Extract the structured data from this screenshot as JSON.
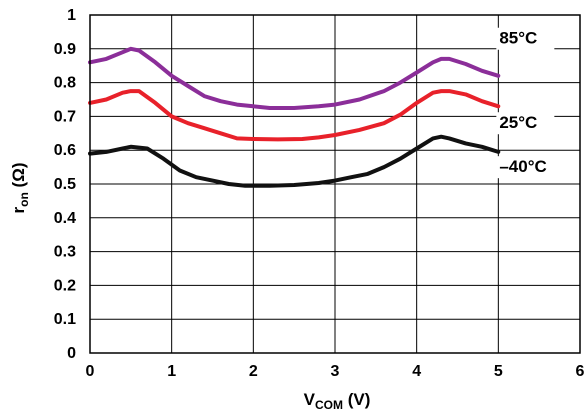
{
  "chart_data": {
    "type": "line",
    "xlabel_main": "V",
    "xlabel_sub": "COM",
    "xlabel_tail": " (V)",
    "ylabel_main": "r",
    "ylabel_sub": "on",
    "ylabel_tail": " (Ω)",
    "xlim": [
      0,
      6
    ],
    "ylim": [
      0,
      1
    ],
    "x_ticks": [
      {
        "value": 0,
        "label": "0"
      },
      {
        "value": 1,
        "label": "1"
      },
      {
        "value": 2,
        "label": "2"
      },
      {
        "value": 3,
        "label": "3"
      },
      {
        "value": 4,
        "label": "4"
      },
      {
        "value": 5,
        "label": "5"
      },
      {
        "value": 6,
        "label": "6"
      }
    ],
    "y_ticks": [
      {
        "value": 0,
        "label": "0"
      },
      {
        "value": 0.1,
        "label": "0.1"
      },
      {
        "value": 0.2,
        "label": "0.2"
      },
      {
        "value": 0.3,
        "label": "0.3"
      },
      {
        "value": 0.4,
        "label": "0.4"
      },
      {
        "value": 0.5,
        "label": "0.5"
      },
      {
        "value": 0.6,
        "label": "0.6"
      },
      {
        "value": 0.7,
        "label": "0.7"
      },
      {
        "value": 0.8,
        "label": "0.8"
      },
      {
        "value": 0.9,
        "label": "0.9"
      },
      {
        "value": 1,
        "label": "1"
      }
    ],
    "grid": true,
    "series": [
      {
        "name": "85°C",
        "color": "#8b2e99",
        "label_x": 5.0,
        "label_y": 0.915,
        "points": [
          [
            0,
            0.86
          ],
          [
            0.2,
            0.87
          ],
          [
            0.4,
            0.89
          ],
          [
            0.5,
            0.9
          ],
          [
            0.6,
            0.895
          ],
          [
            0.8,
            0.86
          ],
          [
            1.0,
            0.82
          ],
          [
            1.2,
            0.79
          ],
          [
            1.4,
            0.76
          ],
          [
            1.6,
            0.745
          ],
          [
            1.8,
            0.735
          ],
          [
            2.0,
            0.73
          ],
          [
            2.2,
            0.725
          ],
          [
            2.5,
            0.725
          ],
          [
            2.8,
            0.73
          ],
          [
            3.0,
            0.735
          ],
          [
            3.3,
            0.75
          ],
          [
            3.6,
            0.775
          ],
          [
            3.8,
            0.8
          ],
          [
            4.0,
            0.83
          ],
          [
            4.2,
            0.86
          ],
          [
            4.3,
            0.87
          ],
          [
            4.4,
            0.87
          ],
          [
            4.6,
            0.855
          ],
          [
            4.8,
            0.835
          ],
          [
            5.0,
            0.82
          ]
        ]
      },
      {
        "name": "25°C",
        "color": "#e8212a",
        "label_x": 5.0,
        "label_y": 0.665,
        "points": [
          [
            0,
            0.74
          ],
          [
            0.2,
            0.75
          ],
          [
            0.4,
            0.77
          ],
          [
            0.5,
            0.775
          ],
          [
            0.6,
            0.775
          ],
          [
            0.8,
            0.74
          ],
          [
            1.0,
            0.7
          ],
          [
            1.2,
            0.68
          ],
          [
            1.4,
            0.665
          ],
          [
            1.6,
            0.65
          ],
          [
            1.8,
            0.635
          ],
          [
            2.0,
            0.633
          ],
          [
            2.3,
            0.632
          ],
          [
            2.6,
            0.633
          ],
          [
            2.8,
            0.638
          ],
          [
            3.0,
            0.645
          ],
          [
            3.3,
            0.66
          ],
          [
            3.6,
            0.68
          ],
          [
            3.8,
            0.705
          ],
          [
            4.0,
            0.74
          ],
          [
            4.2,
            0.77
          ],
          [
            4.3,
            0.775
          ],
          [
            4.4,
            0.775
          ],
          [
            4.6,
            0.765
          ],
          [
            4.8,
            0.745
          ],
          [
            5.0,
            0.73
          ]
        ]
      },
      {
        "name": "–40°C",
        "color": "#111111",
        "label_x": 5.0,
        "label_y": 0.535,
        "points": [
          [
            0,
            0.59
          ],
          [
            0.2,
            0.595
          ],
          [
            0.4,
            0.605
          ],
          [
            0.5,
            0.61
          ],
          [
            0.7,
            0.605
          ],
          [
            0.9,
            0.575
          ],
          [
            1.1,
            0.54
          ],
          [
            1.3,
            0.52
          ],
          [
            1.5,
            0.51
          ],
          [
            1.7,
            0.5
          ],
          [
            1.9,
            0.495
          ],
          [
            2.2,
            0.495
          ],
          [
            2.5,
            0.497
          ],
          [
            2.8,
            0.503
          ],
          [
            3.0,
            0.51
          ],
          [
            3.2,
            0.52
          ],
          [
            3.4,
            0.53
          ],
          [
            3.6,
            0.55
          ],
          [
            3.8,
            0.575
          ],
          [
            4.0,
            0.605
          ],
          [
            4.2,
            0.635
          ],
          [
            4.3,
            0.64
          ],
          [
            4.4,
            0.635
          ],
          [
            4.6,
            0.62
          ],
          [
            4.8,
            0.61
          ],
          [
            5.0,
            0.595
          ]
        ]
      }
    ]
  }
}
